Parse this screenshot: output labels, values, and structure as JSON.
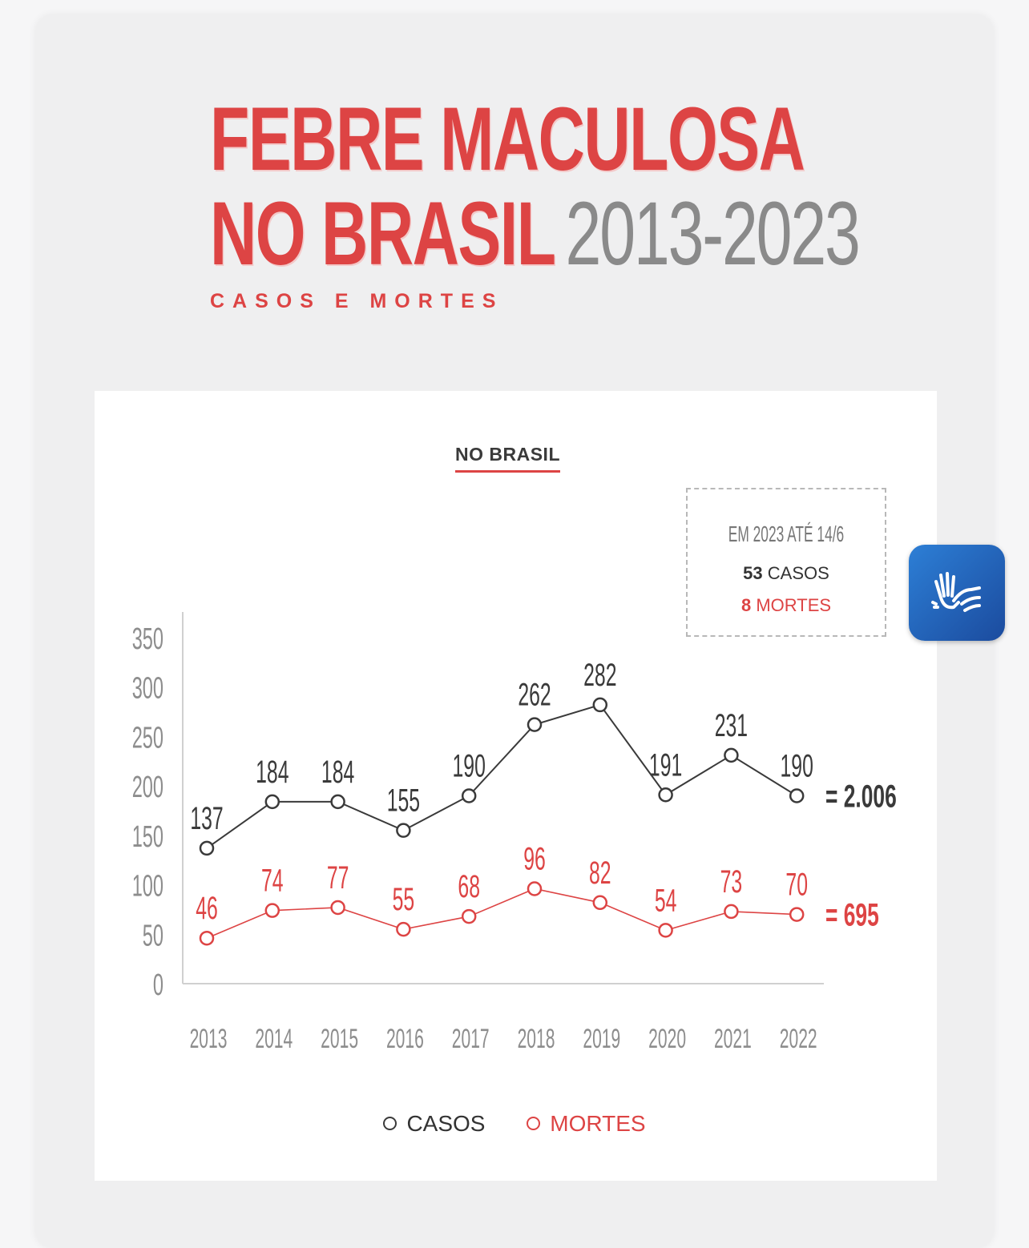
{
  "header": {
    "title_line1": "FEBRE MACULOSA",
    "title_line2": "NO BRASIL",
    "title_years": "2013-2023",
    "subtitle": "CASOS E MORTES"
  },
  "panel": {
    "title": "NO BRASIL"
  },
  "note": {
    "heading": "EM 2023 ATÉ 14/6",
    "casos_value": "53",
    "casos_label": "CASOS",
    "mortes_value": "8",
    "mortes_label": "MORTES"
  },
  "legend": {
    "casos": "CASOS",
    "mortes": "MORTES"
  },
  "colors": {
    "casos": "#3a3a3a",
    "mortes": "#dd4444"
  },
  "icons": {
    "accessibility": "sign-language-hands-icon"
  },
  "chart_data": {
    "type": "line",
    "categories": [
      "2013",
      "2014",
      "2015",
      "2016",
      "2017",
      "2018",
      "2019",
      "2020",
      "2021",
      "2022"
    ],
    "series": [
      {
        "name": "CASOS",
        "values": [
          137,
          184,
          184,
          155,
          190,
          262,
          282,
          191,
          231,
          190
        ],
        "total_label": "= 2.006"
      },
      {
        "name": "MORTES",
        "values": [
          46,
          74,
          77,
          55,
          68,
          96,
          82,
          54,
          73,
          70
        ],
        "total_label": "= 695"
      }
    ],
    "yticks": [
      0,
      50,
      100,
      150,
      200,
      250,
      300,
      350
    ],
    "ylim": [
      0,
      350
    ],
    "grid": false
  }
}
